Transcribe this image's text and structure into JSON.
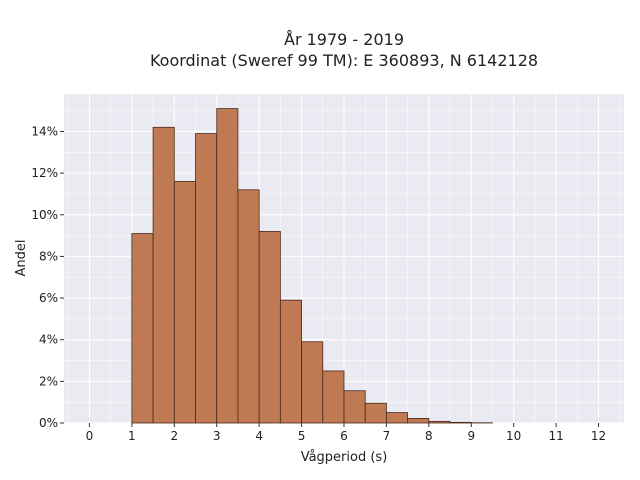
{
  "chart_data": {
    "type": "bar",
    "title_lines": [
      "År 1979 - 2019",
      "Koordinat (Sweref 99 TM): E 360893, N 6142128"
    ],
    "xlabel": "Vågperiod (s)",
    "ylabel": "Andel",
    "xlim": [
      -0.6,
      12.6
    ],
    "ylim": [
      0,
      15.8
    ],
    "xticks": [
      "0",
      "1",
      "2",
      "3",
      "4",
      "5",
      "6",
      "7",
      "8",
      "9",
      "10",
      "11",
      "12"
    ],
    "yticks": [
      "0%",
      "2%",
      "4%",
      "6%",
      "8%",
      "10%",
      "12%",
      "14%"
    ],
    "bin_width": 0.5,
    "bins": [
      {
        "x0": 1.0,
        "value": 9.1
      },
      {
        "x0": 1.5,
        "value": 14.2
      },
      {
        "x0": 2.0,
        "value": 11.6
      },
      {
        "x0": 2.5,
        "value": 13.9
      },
      {
        "x0": 3.0,
        "value": 15.1
      },
      {
        "x0": 3.5,
        "value": 11.2
      },
      {
        "x0": 4.0,
        "value": 9.2
      },
      {
        "x0": 4.5,
        "value": 5.9
      },
      {
        "x0": 5.0,
        "value": 3.9
      },
      {
        "x0": 5.5,
        "value": 2.5
      },
      {
        "x0": 6.0,
        "value": 1.55
      },
      {
        "x0": 6.5,
        "value": 0.95
      },
      {
        "x0": 7.0,
        "value": 0.5
      },
      {
        "x0": 7.5,
        "value": 0.22
      },
      {
        "x0": 8.0,
        "value": 0.08
      },
      {
        "x0": 8.5,
        "value": 0.03
      },
      {
        "x0": 9.0,
        "value": 0.01
      }
    ],
    "grid": true,
    "colors": {
      "bar": "#c07a53",
      "edge": "#4a2a1a",
      "plot_bg": "#eaeaf2",
      "grid": "#ffffff"
    }
  }
}
